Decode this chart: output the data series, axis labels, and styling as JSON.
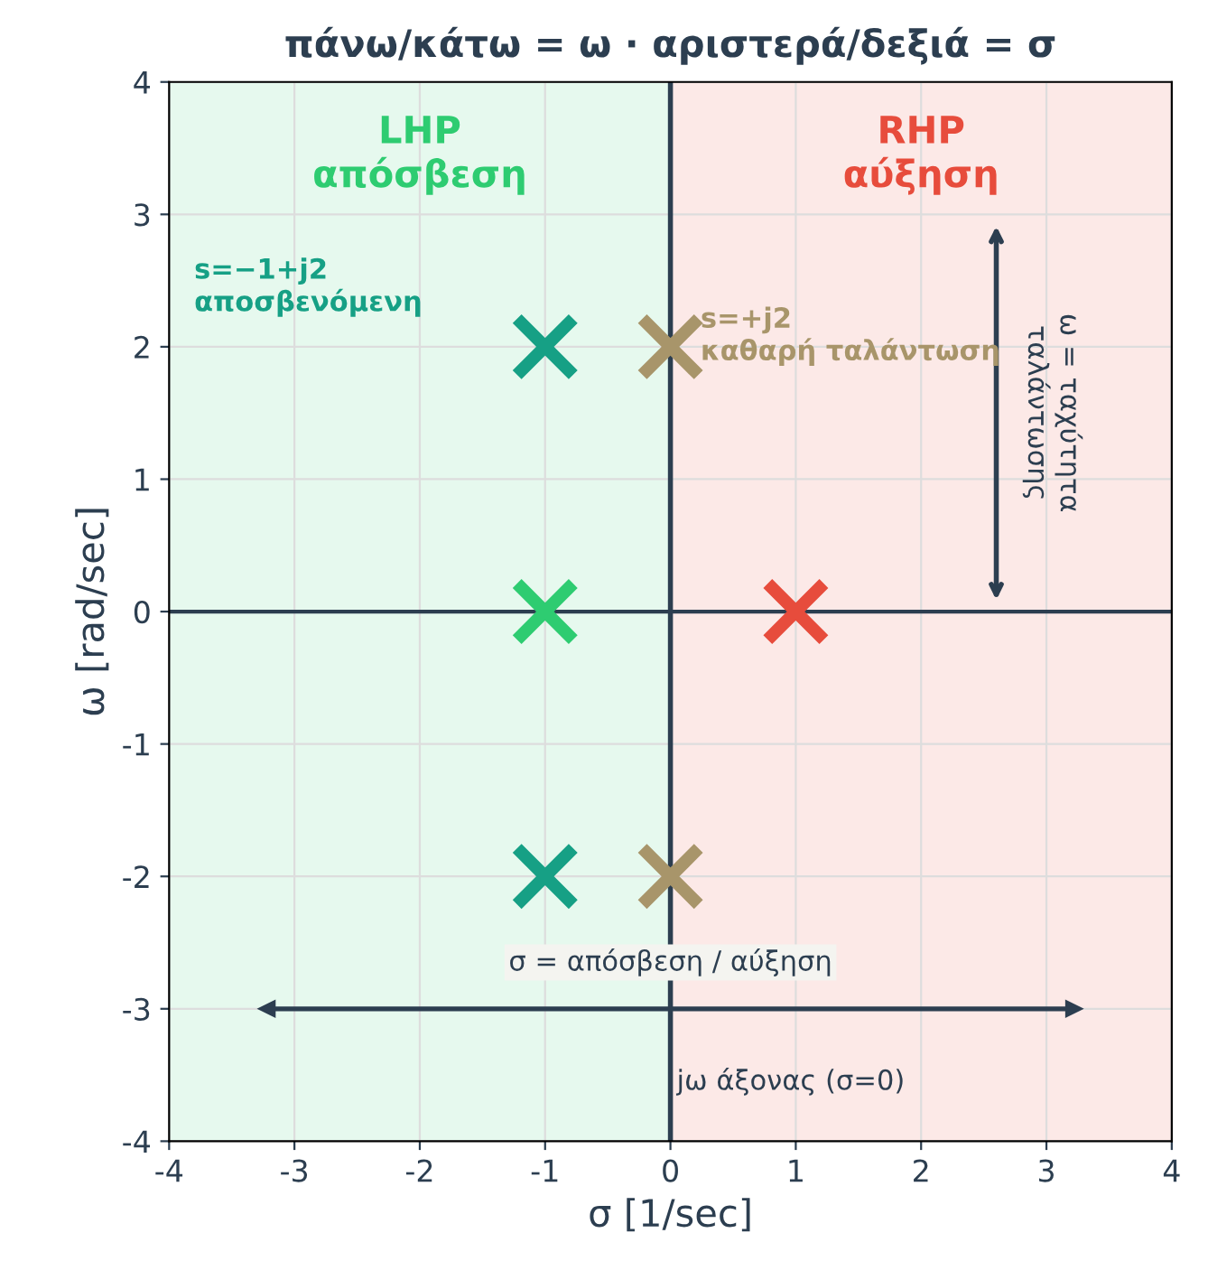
{
  "chart_data": {
    "type": "scatter",
    "title": "πάνω/κάτω = ω · αριστερά/δεξιά = σ",
    "xlabel": "σ [1/sec]",
    "ylabel": "ω [rad/sec]",
    "xlim": [
      -4,
      4
    ],
    "ylim": [
      -4,
      4
    ],
    "xticks": [
      -4,
      -3,
      -2,
      -1,
      0,
      1,
      2,
      3,
      4
    ],
    "yticks": [
      -4,
      -3,
      -2,
      -1,
      0,
      1,
      2,
      3,
      4
    ],
    "grid": true,
    "marker": "cross",
    "series": [
      {
        "color": "#16a085",
        "x": [
          -1,
          -1
        ],
        "values": [
          2,
          -2
        ]
      },
      {
        "color": "#a8956a",
        "x": [
          0,
          0
        ],
        "values": [
          2,
          -2
        ]
      },
      {
        "color": "#2ecc71",
        "x": [
          -1
        ],
        "values": [
          0
        ]
      },
      {
        "color": "#e74c3c",
        "x": [
          1
        ],
        "values": [
          0
        ]
      }
    ],
    "bands": [
      {
        "axis": "x",
        "from": -4,
        "to": 0,
        "label": "LHP\nαπόσβεση",
        "color": "#2ecc71"
      },
      {
        "axis": "x",
        "from": 0,
        "to": 4,
        "label": "RHP\nαύξηση",
        "color": "#e74c3c"
      }
    ],
    "ref_lines": [
      {
        "axis": "x",
        "value": 0,
        "label": "jω άξονας (σ=0)",
        "color": "#2c3e50"
      },
      {
        "axis": "y",
        "value": 0,
        "color": "#2c3e50"
      }
    ],
    "annotations": [
      "s=−1+j2\nαποσβενόμενη",
      "s=+j2\nκαθαρή ταλάντωση",
      "ω = ταχύτητα\nταλάντωσης",
      "σ = απόσβεση / αύξηση"
    ]
  }
}
